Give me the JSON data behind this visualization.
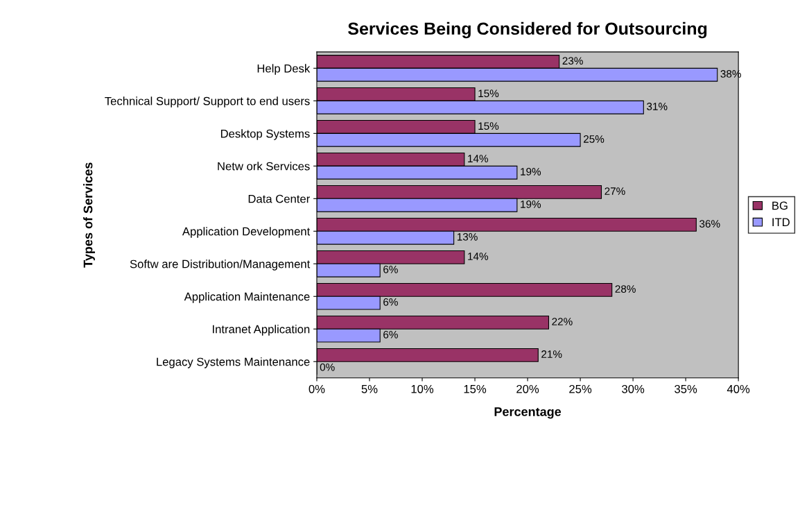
{
  "chart_data": {
    "type": "bar",
    "orientation": "horizontal",
    "title": "Services Being Considered for Outsourcing",
    "xlabel": "Percentage",
    "ylabel": "Types of Services",
    "categories": [
      "Help Desk",
      "Technical Support/ Support to end users",
      "Desktop Systems",
      "Netw ork Services",
      "Data Center",
      "Application Development",
      "Softw are Distribution/Management",
      "Application Maintenance",
      "Intranet Application",
      "Legacy Systems Maintenance"
    ],
    "series": [
      {
        "name": "BG",
        "color": "#993366",
        "values": [
          23,
          15,
          15,
          14,
          27,
          36,
          14,
          28,
          22,
          21
        ],
        "value_labels": [
          "23%",
          "15%",
          "15%",
          "14%",
          "27%",
          "36%",
          "14%",
          "28%",
          "22%",
          "21%"
        ]
      },
      {
        "name": "ITD",
        "color": "#9999ff",
        "values": [
          38,
          31,
          25,
          19,
          19,
          13,
          6,
          6,
          6,
          0
        ],
        "value_labels": [
          "38%",
          "31%",
          "25%",
          "19%",
          "19%",
          "13%",
          "6%",
          "6%",
          "6%",
          "0%"
        ]
      }
    ],
    "xlim": [
      0,
      40
    ],
    "xticks": [
      {
        "value": 0,
        "label": "0%"
      },
      {
        "value": 5,
        "label": "5%"
      },
      {
        "value": 10,
        "label": "10%"
      },
      {
        "value": 15,
        "label": "15%"
      },
      {
        "value": 20,
        "label": "20%"
      },
      {
        "value": 25,
        "label": "25%"
      },
      {
        "value": 30,
        "label": "30%"
      },
      {
        "value": 35,
        "label": "35%"
      },
      {
        "value": 40,
        "label": "40%"
      }
    ],
    "grid": false,
    "legend": "right"
  }
}
